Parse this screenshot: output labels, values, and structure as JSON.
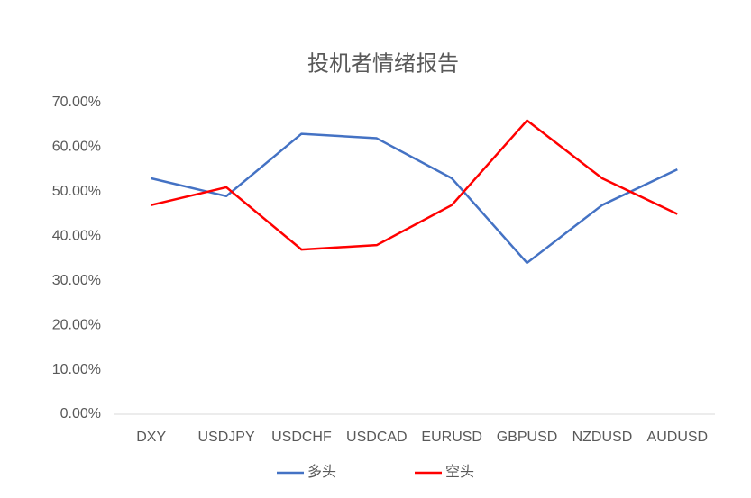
{
  "chart_data": {
    "type": "line",
    "title": "投机者情绪报告",
    "categories": [
      "DXY",
      "USDJPY",
      "USDCHF",
      "USDCAD",
      "EURUSD",
      "GBPUSD",
      "NZDUSD",
      "AUDUSD"
    ],
    "series": [
      {
        "name": "多头",
        "color": "#4472c4",
        "values": [
          53,
          49,
          63,
          62,
          53,
          34,
          47,
          55
        ]
      },
      {
        "name": "空头",
        "color": "#ff0000",
        "values": [
          47,
          51,
          37,
          38,
          47,
          66,
          53,
          45
        ]
      }
    ],
    "ylim": [
      0,
      70
    ],
    "yticks": [
      {
        "value": 0,
        "label": "0.00%"
      },
      {
        "value": 10,
        "label": "10.00%"
      },
      {
        "value": 20,
        "label": "20.00%"
      },
      {
        "value": 30,
        "label": "30.00%"
      },
      {
        "value": 40,
        "label": "40.00%"
      },
      {
        "value": 50,
        "label": "50.00%"
      },
      {
        "value": 60,
        "label": "60.00%"
      },
      {
        "value": 70,
        "label": "70.00%"
      }
    ],
    "grid": false,
    "legend": "bottom"
  }
}
